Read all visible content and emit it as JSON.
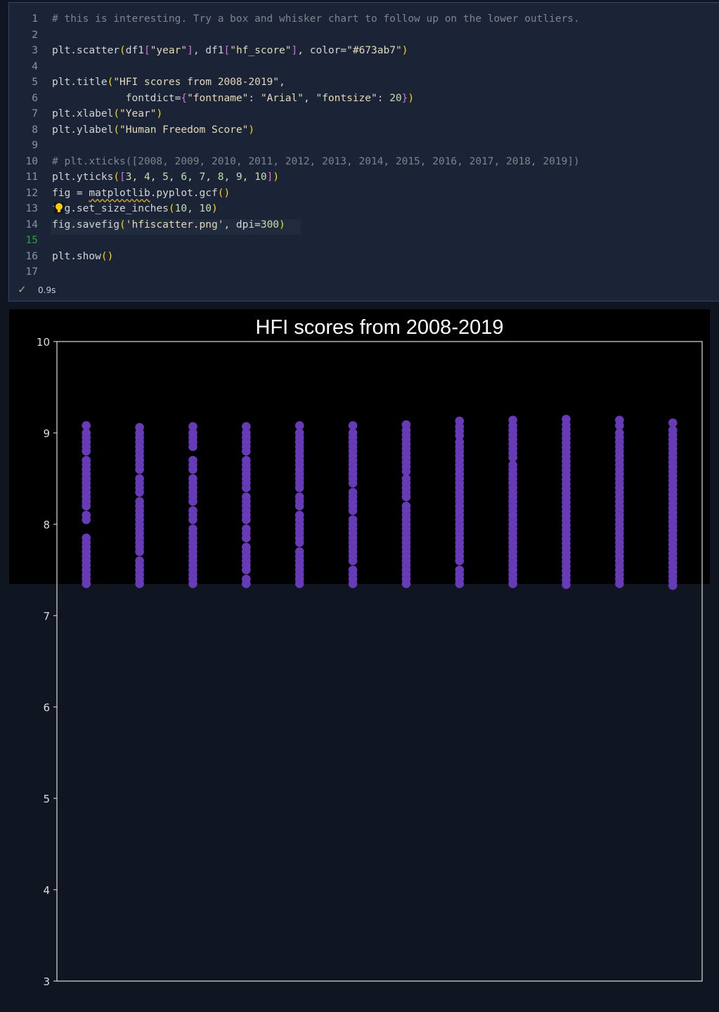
{
  "editor": {
    "active_line": 15,
    "lines": [
      {
        "n": "1",
        "tokens": [
          [
            "# this is interesting. Try a box and whisker chart to follow up on the lower outliers.",
            "t-comment"
          ]
        ]
      },
      {
        "n": "2",
        "tokens": []
      },
      {
        "n": "3",
        "tokens": [
          [
            "plt.scatter",
            ""
          ],
          [
            "(",
            "t-y"
          ],
          [
            "df1",
            ""
          ],
          [
            "[",
            "t-p"
          ],
          [
            "\"year\"",
            "t-str"
          ],
          [
            "]",
            "t-p"
          ],
          [
            ", df1",
            ""
          ],
          [
            "[",
            "t-p"
          ],
          [
            "\"hf_score\"",
            "t-str"
          ],
          [
            "]",
            "t-p"
          ],
          [
            ", color=",
            ""
          ],
          [
            "\"#673ab7\"",
            "t-str"
          ],
          [
            ")",
            "t-y"
          ]
        ]
      },
      {
        "n": "4",
        "tokens": []
      },
      {
        "n": "5",
        "tokens": [
          [
            "plt.title",
            ""
          ],
          [
            "(",
            "t-y"
          ],
          [
            "\"HFI scores from 2008-2019\"",
            "t-str"
          ],
          [
            ",",
            ""
          ]
        ]
      },
      {
        "n": "6",
        "tokens": [
          [
            "            fontdict=",
            ""
          ],
          [
            "{",
            "t-p"
          ],
          [
            "\"fontname\"",
            "t-str"
          ],
          [
            ": ",
            ""
          ],
          [
            "\"Arial\"",
            "t-str"
          ],
          [
            ", ",
            ""
          ],
          [
            "\"fontsize\"",
            "t-str"
          ],
          [
            ": ",
            ""
          ],
          [
            "20",
            "t-num"
          ],
          [
            "}",
            "t-p"
          ],
          [
            ")",
            "t-y"
          ]
        ]
      },
      {
        "n": "7",
        "tokens": [
          [
            "plt.xlabel",
            ""
          ],
          [
            "(",
            "t-y"
          ],
          [
            "\"Year\"",
            "t-str"
          ],
          [
            ")",
            "t-y"
          ]
        ]
      },
      {
        "n": "8",
        "tokens": [
          [
            "plt.ylabel",
            ""
          ],
          [
            "(",
            "t-y"
          ],
          [
            "\"Human Freedom Score\"",
            "t-str"
          ],
          [
            ")",
            "t-y"
          ]
        ]
      },
      {
        "n": "9",
        "tokens": []
      },
      {
        "n": "10",
        "tokens": [
          [
            "# plt.xticks([2008, 2009, 2010, 2011, 2012, 2013, 2014, 2015, 2016, 2017, 2018, 2019])",
            "t-comment"
          ]
        ]
      },
      {
        "n": "11",
        "tokens": [
          [
            "plt.yticks",
            ""
          ],
          [
            "(",
            "t-y"
          ],
          [
            "[",
            "t-p"
          ],
          [
            "3, 4, 5, 6, 7, 8, 9, 10",
            "t-num"
          ],
          [
            "]",
            "t-p"
          ],
          [
            ")",
            "t-y"
          ]
        ]
      },
      {
        "n": "12",
        "tokens": [
          [
            "fig = ",
            ""
          ],
          [
            "matplotlib",
            "squiggle"
          ],
          [
            ".pyplot.gcf",
            ""
          ],
          [
            "()",
            "t-y"
          ]
        ]
      },
      {
        "n": "13",
        "tokens": [
          [
            "fig.set_size_inches",
            ""
          ],
          [
            "(",
            "t-y"
          ],
          [
            "10, 10",
            "t-num"
          ],
          [
            ")",
            "t-y"
          ]
        ]
      },
      {
        "n": "14",
        "tokens": [
          [
            "fig.savefig",
            ""
          ],
          [
            "(",
            "t-y"
          ],
          [
            "'hfiscatter.png'",
            "t-str"
          ],
          [
            ", dpi=",
            ""
          ],
          [
            "300",
            "t-num"
          ],
          [
            ")",
            "t-y"
          ]
        ]
      },
      {
        "n": "15",
        "tokens": []
      },
      {
        "n": "16",
        "tokens": [
          [
            "plt.show",
            ""
          ],
          [
            "()",
            "t-y"
          ]
        ]
      },
      {
        "n": "17",
        "tokens": []
      }
    ]
  },
  "status": {
    "icon": "check-icon",
    "time": "0.9s"
  },
  "chart_data": {
    "type": "scatter",
    "title": "HFI scores from 2008-2019",
    "xlabel": "",
    "ylabel": "",
    "color": "#673ab7",
    "xlim": [
      2007.45,
      2019.55
    ],
    "ylim": [
      3,
      10
    ],
    "yticks": [
      3,
      4,
      5,
      6,
      7,
      8,
      9,
      10
    ],
    "grid": false,
    "series": [
      {
        "x": 2008,
        "y": [
          9.08,
          9.0,
          8.95,
          8.9,
          8.85,
          8.8,
          8.7,
          8.65,
          8.6,
          8.55,
          8.5,
          8.45,
          8.4,
          8.35,
          8.3,
          8.25,
          8.2,
          8.1,
          8.05,
          7.85,
          7.8,
          7.75,
          7.7,
          7.65,
          7.6,
          7.55,
          7.5,
          7.45,
          7.4,
          7.35
        ]
      },
      {
        "x": 2009,
        "y": [
          9.06,
          9.0,
          8.95,
          8.9,
          8.85,
          8.8,
          8.75,
          8.7,
          8.65,
          8.6,
          8.5,
          8.45,
          8.4,
          8.35,
          8.25,
          8.2,
          8.15,
          8.1,
          8.05,
          8.0,
          7.95,
          7.9,
          7.85,
          7.8,
          7.75,
          7.7,
          7.6,
          7.55,
          7.5,
          7.45,
          7.4,
          7.35
        ]
      },
      {
        "x": 2010,
        "y": [
          9.07,
          9.0,
          8.95,
          8.9,
          8.85,
          8.7,
          8.65,
          8.6,
          8.5,
          8.45,
          8.4,
          8.35,
          8.3,
          8.25,
          8.15,
          8.1,
          8.05,
          7.95,
          7.9,
          7.85,
          7.8,
          7.75,
          7.7,
          7.65,
          7.6,
          7.55,
          7.5,
          7.45,
          7.4,
          7.35
        ]
      },
      {
        "x": 2011,
        "y": [
          9.07,
          9.0,
          8.95,
          8.9,
          8.85,
          8.8,
          8.7,
          8.65,
          8.6,
          8.55,
          8.5,
          8.45,
          8.4,
          8.3,
          8.25,
          8.2,
          8.15,
          8.1,
          8.05,
          7.95,
          7.9,
          7.85,
          7.75,
          7.7,
          7.65,
          7.6,
          7.55,
          7.5,
          7.4,
          7.35
        ]
      },
      {
        "x": 2012,
        "y": [
          9.08,
          9.0,
          8.95,
          8.9,
          8.85,
          8.8,
          8.75,
          8.7,
          8.65,
          8.6,
          8.55,
          8.5,
          8.45,
          8.4,
          8.3,
          8.25,
          8.2,
          8.1,
          8.05,
          8.0,
          7.95,
          7.9,
          7.85,
          7.8,
          7.7,
          7.65,
          7.6,
          7.55,
          7.5,
          7.45,
          7.4,
          7.35
        ]
      },
      {
        "x": 2013,
        "y": [
          9.08,
          9.0,
          8.95,
          8.9,
          8.85,
          8.8,
          8.75,
          8.7,
          8.65,
          8.6,
          8.55,
          8.5,
          8.45,
          8.35,
          8.3,
          8.25,
          8.2,
          8.15,
          8.05,
          8.0,
          7.95,
          7.9,
          7.85,
          7.8,
          7.75,
          7.7,
          7.65,
          7.6,
          7.5,
          7.45,
          7.4,
          7.35
        ]
      },
      {
        "x": 2014,
        "y": [
          9.09,
          9.03,
          8.98,
          8.93,
          8.88,
          8.83,
          8.78,
          8.73,
          8.68,
          8.63,
          8.58,
          8.5,
          8.45,
          8.4,
          8.35,
          8.3,
          8.2,
          8.15,
          8.1,
          8.05,
          8.0,
          7.95,
          7.9,
          7.85,
          7.8,
          7.75,
          7.7,
          7.65,
          7.6,
          7.55,
          7.5,
          7.45,
          7.4,
          7.35
        ]
      },
      {
        "x": 2015,
        "y": [
          9.13,
          9.07,
          9.02,
          8.97,
          8.9,
          8.85,
          8.8,
          8.75,
          8.7,
          8.65,
          8.6,
          8.55,
          8.5,
          8.45,
          8.4,
          8.35,
          8.3,
          8.25,
          8.2,
          8.15,
          8.1,
          8.05,
          8.0,
          7.95,
          7.9,
          7.85,
          7.8,
          7.75,
          7.7,
          7.65,
          7.6,
          7.5,
          7.45,
          7.4,
          7.35
        ]
      },
      {
        "x": 2016,
        "y": [
          9.14,
          9.08,
          9.03,
          8.98,
          8.93,
          8.88,
          8.83,
          8.78,
          8.73,
          8.65,
          8.6,
          8.55,
          8.5,
          8.45,
          8.4,
          8.35,
          8.3,
          8.25,
          8.2,
          8.15,
          8.1,
          8.05,
          8.0,
          7.95,
          7.9,
          7.85,
          7.8,
          7.75,
          7.7,
          7.65,
          7.6,
          7.55,
          7.5,
          7.45,
          7.4,
          7.35
        ]
      },
      {
        "x": 2017,
        "y": [
          9.15,
          9.09,
          9.04,
          8.99,
          8.94,
          8.89,
          8.84,
          8.79,
          8.74,
          8.69,
          8.64,
          8.59,
          8.54,
          8.49,
          8.44,
          8.39,
          8.34,
          8.29,
          8.24,
          8.19,
          8.14,
          8.09,
          8.04,
          7.99,
          7.94,
          7.89,
          7.84,
          7.79,
          7.74,
          7.69,
          7.64,
          7.59,
          7.54,
          7.49,
          7.44,
          7.39,
          7.34
        ]
      },
      {
        "x": 2018,
        "y": [
          9.14,
          9.08,
          9.0,
          8.95,
          8.9,
          8.85,
          8.8,
          8.75,
          8.7,
          8.65,
          8.6,
          8.55,
          8.5,
          8.45,
          8.4,
          8.35,
          8.3,
          8.25,
          8.2,
          8.15,
          8.1,
          8.05,
          8.0,
          7.95,
          7.9,
          7.85,
          7.8,
          7.75,
          7.7,
          7.65,
          7.6,
          7.55,
          7.5,
          7.45,
          7.4,
          7.35
        ]
      },
      {
        "x": 2019,
        "y": [
          9.11,
          9.03,
          8.98,
          8.93,
          8.88,
          8.83,
          8.78,
          8.73,
          8.68,
          8.63,
          8.58,
          8.53,
          8.48,
          8.43,
          8.38,
          8.33,
          8.28,
          8.23,
          8.18,
          8.13,
          8.08,
          8.03,
          7.98,
          7.93,
          7.88,
          7.83,
          7.78,
          7.73,
          7.68,
          7.63,
          7.58,
          7.53,
          7.48,
          7.43,
          7.38,
          7.33
        ]
      }
    ]
  }
}
